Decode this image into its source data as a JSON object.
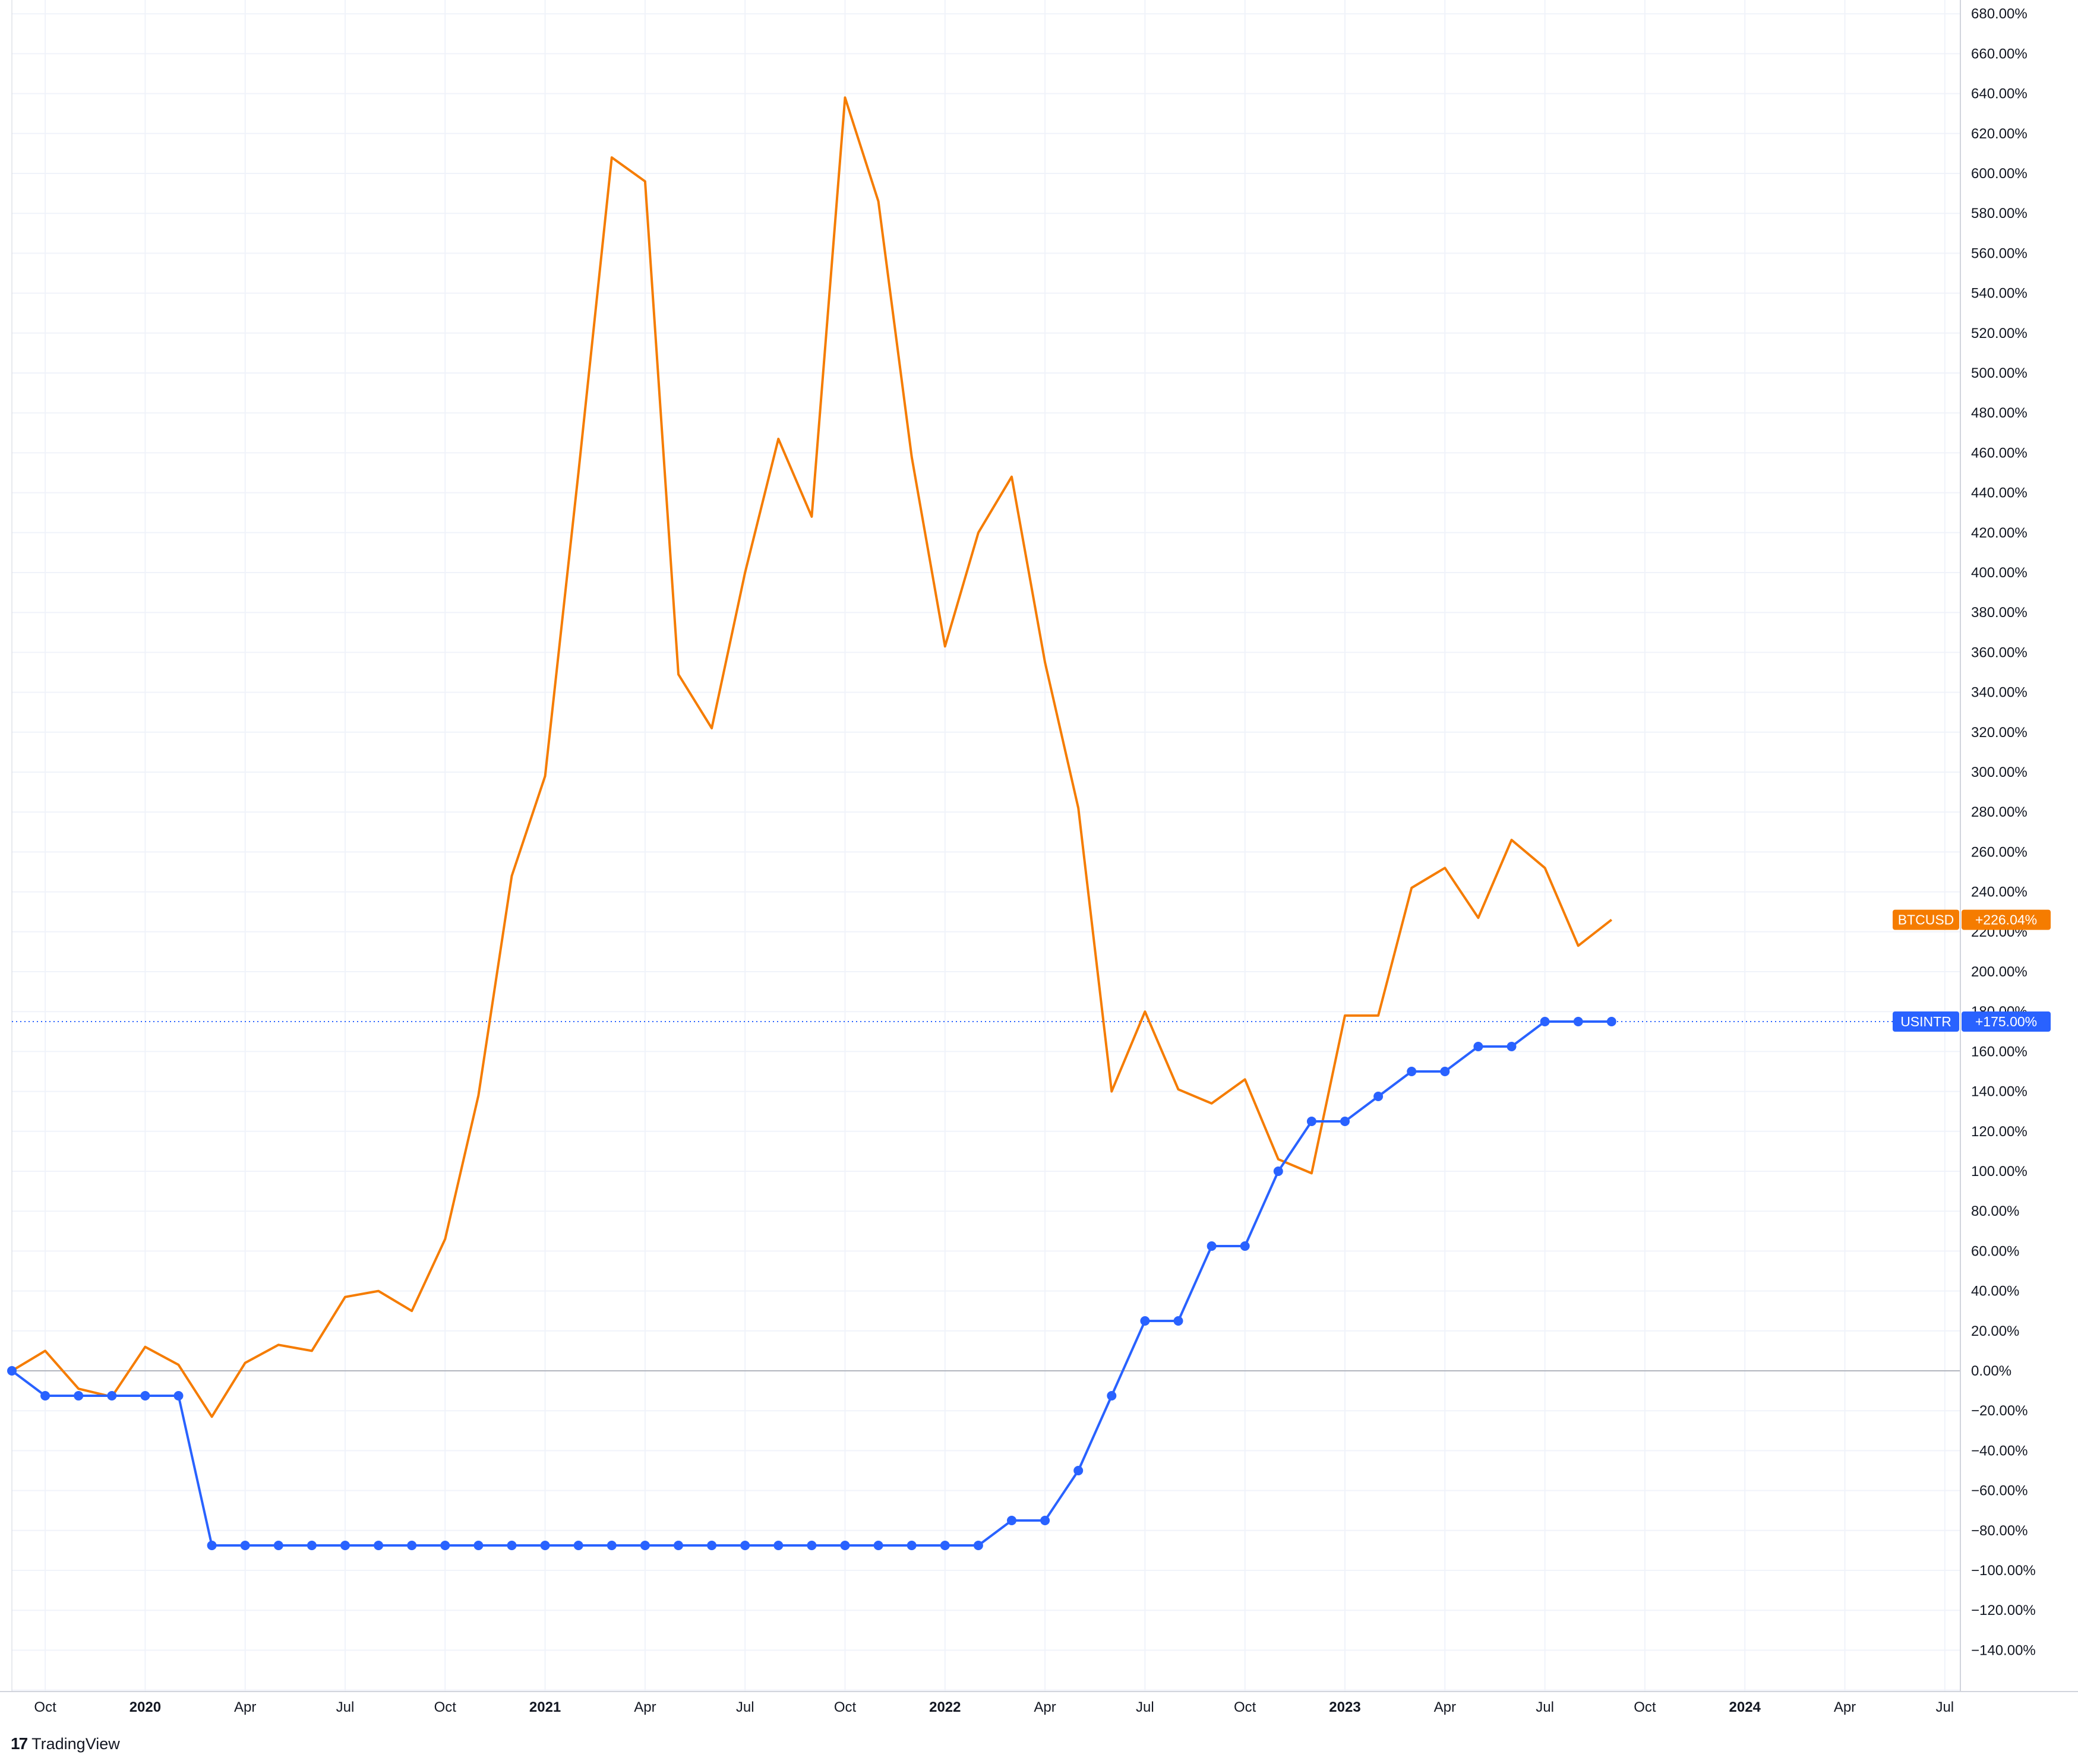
{
  "brand": {
    "logo": "17",
    "name": "TradingView"
  },
  "colors": {
    "btc": "#f57c00",
    "usintr": "#2962ff",
    "grid": "#f0f3fa",
    "zero": "#b2b5be",
    "axis": "#d1d4dc"
  },
  "chart_data": {
    "type": "line",
    "yaxis": {
      "min": -160,
      "max": 680,
      "step": 20,
      "tick_labels": [
        "680.00%",
        "660.00%",
        "640.00%",
        "620.00%",
        "600.00%",
        "580.00%",
        "560.00%",
        "540.00%",
        "520.00%",
        "500.00%",
        "480.00%",
        "460.00%",
        "440.00%",
        "420.00%",
        "400.00%",
        "380.00%",
        "360.00%",
        "340.00%",
        "320.00%",
        "300.00%",
        "280.00%",
        "260.00%",
        "240.00%",
        "220.00%",
        "200.00%",
        "180.00%",
        "160.00%",
        "140.00%",
        "120.00%",
        "100.00%",
        "80.00%",
        "60.00%",
        "40.00%",
        "20.00%",
        "0.00%",
        "−20.00%",
        "−40.00%",
        "−60.00%",
        "−80.00%",
        "−100.00%",
        "−120.00%",
        "−140.00%"
      ]
    },
    "xaxis": {
      "ticks": [
        {
          "label": "Oct",
          "year": false,
          "date": "2019-10"
        },
        {
          "label": "2020",
          "year": true,
          "date": "2020-01"
        },
        {
          "label": "Apr",
          "year": false,
          "date": "2020-04"
        },
        {
          "label": "Jul",
          "year": false,
          "date": "2020-07"
        },
        {
          "label": "Oct",
          "year": false,
          "date": "2020-10"
        },
        {
          "label": "2021",
          "year": true,
          "date": "2021-01"
        },
        {
          "label": "Apr",
          "year": false,
          "date": "2021-04"
        },
        {
          "label": "Jul",
          "year": false,
          "date": "2021-07"
        },
        {
          "label": "Oct",
          "year": false,
          "date": "2021-10"
        },
        {
          "label": "2022",
          "year": true,
          "date": "2022-01"
        },
        {
          "label": "Apr",
          "year": false,
          "date": "2022-04"
        },
        {
          "label": "Jul",
          "year": false,
          "date": "2022-07"
        },
        {
          "label": "Oct",
          "year": false,
          "date": "2022-10"
        },
        {
          "label": "2023",
          "year": true,
          "date": "2023-01"
        },
        {
          "label": "Apr",
          "year": false,
          "date": "2023-04"
        },
        {
          "label": "Jul",
          "year": false,
          "date": "2023-07"
        },
        {
          "label": "Oct",
          "year": false,
          "date": "2023-10"
        },
        {
          "label": "2024",
          "year": true,
          "date": "2024-01"
        },
        {
          "label": "Apr",
          "year": false,
          "date": "2024-04"
        },
        {
          "label": "Jul",
          "year": false,
          "date": "2024-07"
        }
      ]
    },
    "x": [
      "2019-09",
      "2019-10",
      "2019-11",
      "2019-12",
      "2020-01",
      "2020-02",
      "2020-03",
      "2020-04",
      "2020-05",
      "2020-06",
      "2020-07",
      "2020-08",
      "2020-09",
      "2020-10",
      "2020-11",
      "2020-12",
      "2021-01",
      "2021-02",
      "2021-03",
      "2021-04",
      "2021-05",
      "2021-06",
      "2021-07",
      "2021-08",
      "2021-09",
      "2021-10",
      "2021-11",
      "2021-12",
      "2022-01",
      "2022-02",
      "2022-03",
      "2022-04",
      "2022-05",
      "2022-06",
      "2022-07",
      "2022-08",
      "2022-09",
      "2022-10",
      "2022-11",
      "2022-12",
      "2023-01",
      "2023-02",
      "2023-03",
      "2023-04",
      "2023-05",
      "2023-06",
      "2023-07",
      "2023-08",
      "2023-09"
    ],
    "series": [
      {
        "name": "BTCUSD",
        "markers": false,
        "last_label": "+226.04%",
        "values": [
          0,
          10,
          -9,
          -13,
          12,
          3,
          -23,
          4,
          13,
          10,
          37,
          40,
          30,
          66,
          138,
          248,
          298,
          450,
          608,
          596,
          349,
          322,
          400,
          467,
          428,
          638,
          586,
          458,
          363,
          420,
          448,
          355,
          282,
          140,
          180,
          141,
          134,
          146,
          106,
          99,
          178,
          178,
          242,
          252,
          227,
          266,
          252,
          213,
          226
        ]
      },
      {
        "name": "USINTR",
        "markers": true,
        "last_label": "+175.00%",
        "values": [
          0,
          -12.5,
          -12.5,
          -12.5,
          -12.5,
          -12.5,
          -87.5,
          -87.5,
          -87.5,
          -87.5,
          -87.5,
          -87.5,
          -87.5,
          -87.5,
          -87.5,
          -87.5,
          -87.5,
          -87.5,
          -87.5,
          -87.5,
          -87.5,
          -87.5,
          -87.5,
          -87.5,
          -87.5,
          -87.5,
          -87.5,
          -87.5,
          -87.5,
          -87.5,
          -75,
          -75,
          -50,
          -12.5,
          25,
          25,
          62.5,
          62.5,
          100,
          125,
          125,
          137.5,
          150,
          150,
          162.5,
          162.5,
          175,
          175,
          175
        ]
      }
    ]
  }
}
